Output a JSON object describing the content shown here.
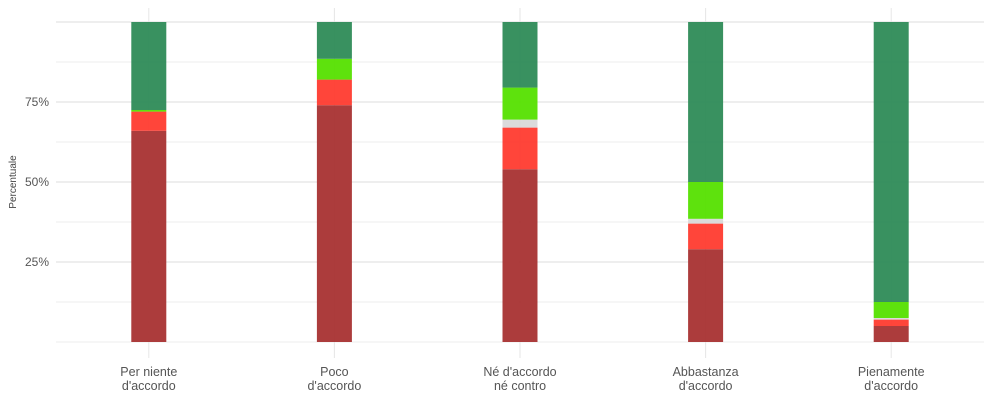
{
  "chart_data": {
    "type": "bar",
    "stacked": true,
    "title": "",
    "xlabel": "",
    "ylabel": "Percentuale",
    "ylim": [
      0,
      100
    ],
    "yticks": [
      25,
      50,
      75
    ],
    "ytick_labels": [
      "25%",
      "50%",
      "75%"
    ],
    "grid": true,
    "legend": "none",
    "categories": [
      [
        "Per niente",
        "d'accordo"
      ],
      [
        "Poco",
        "d'accordo"
      ],
      [
        "Né d'accordo",
        "né contro"
      ],
      [
        "Abbastanza",
        "d'accordo"
      ],
      [
        "Pienamente",
        "d'accordo"
      ]
    ],
    "series": [
      {
        "color": "#a83232",
        "values": [
          66,
          74,
          54,
          29,
          5
        ]
      },
      {
        "color": "#ff3b2f",
        "values": [
          6,
          8,
          13,
          8,
          2
        ]
      },
      {
        "color": "#d9d9d9",
        "values": [
          0,
          0,
          2.5,
          1.5,
          0.5
        ]
      },
      {
        "color": "#55e000",
        "values": [
          0.5,
          6.5,
          10,
          11.5,
          5
        ]
      },
      {
        "color": "#2e8b57",
        "values": [
          27.5,
          11.5,
          20.5,
          50,
          87.5
        ]
      }
    ]
  }
}
